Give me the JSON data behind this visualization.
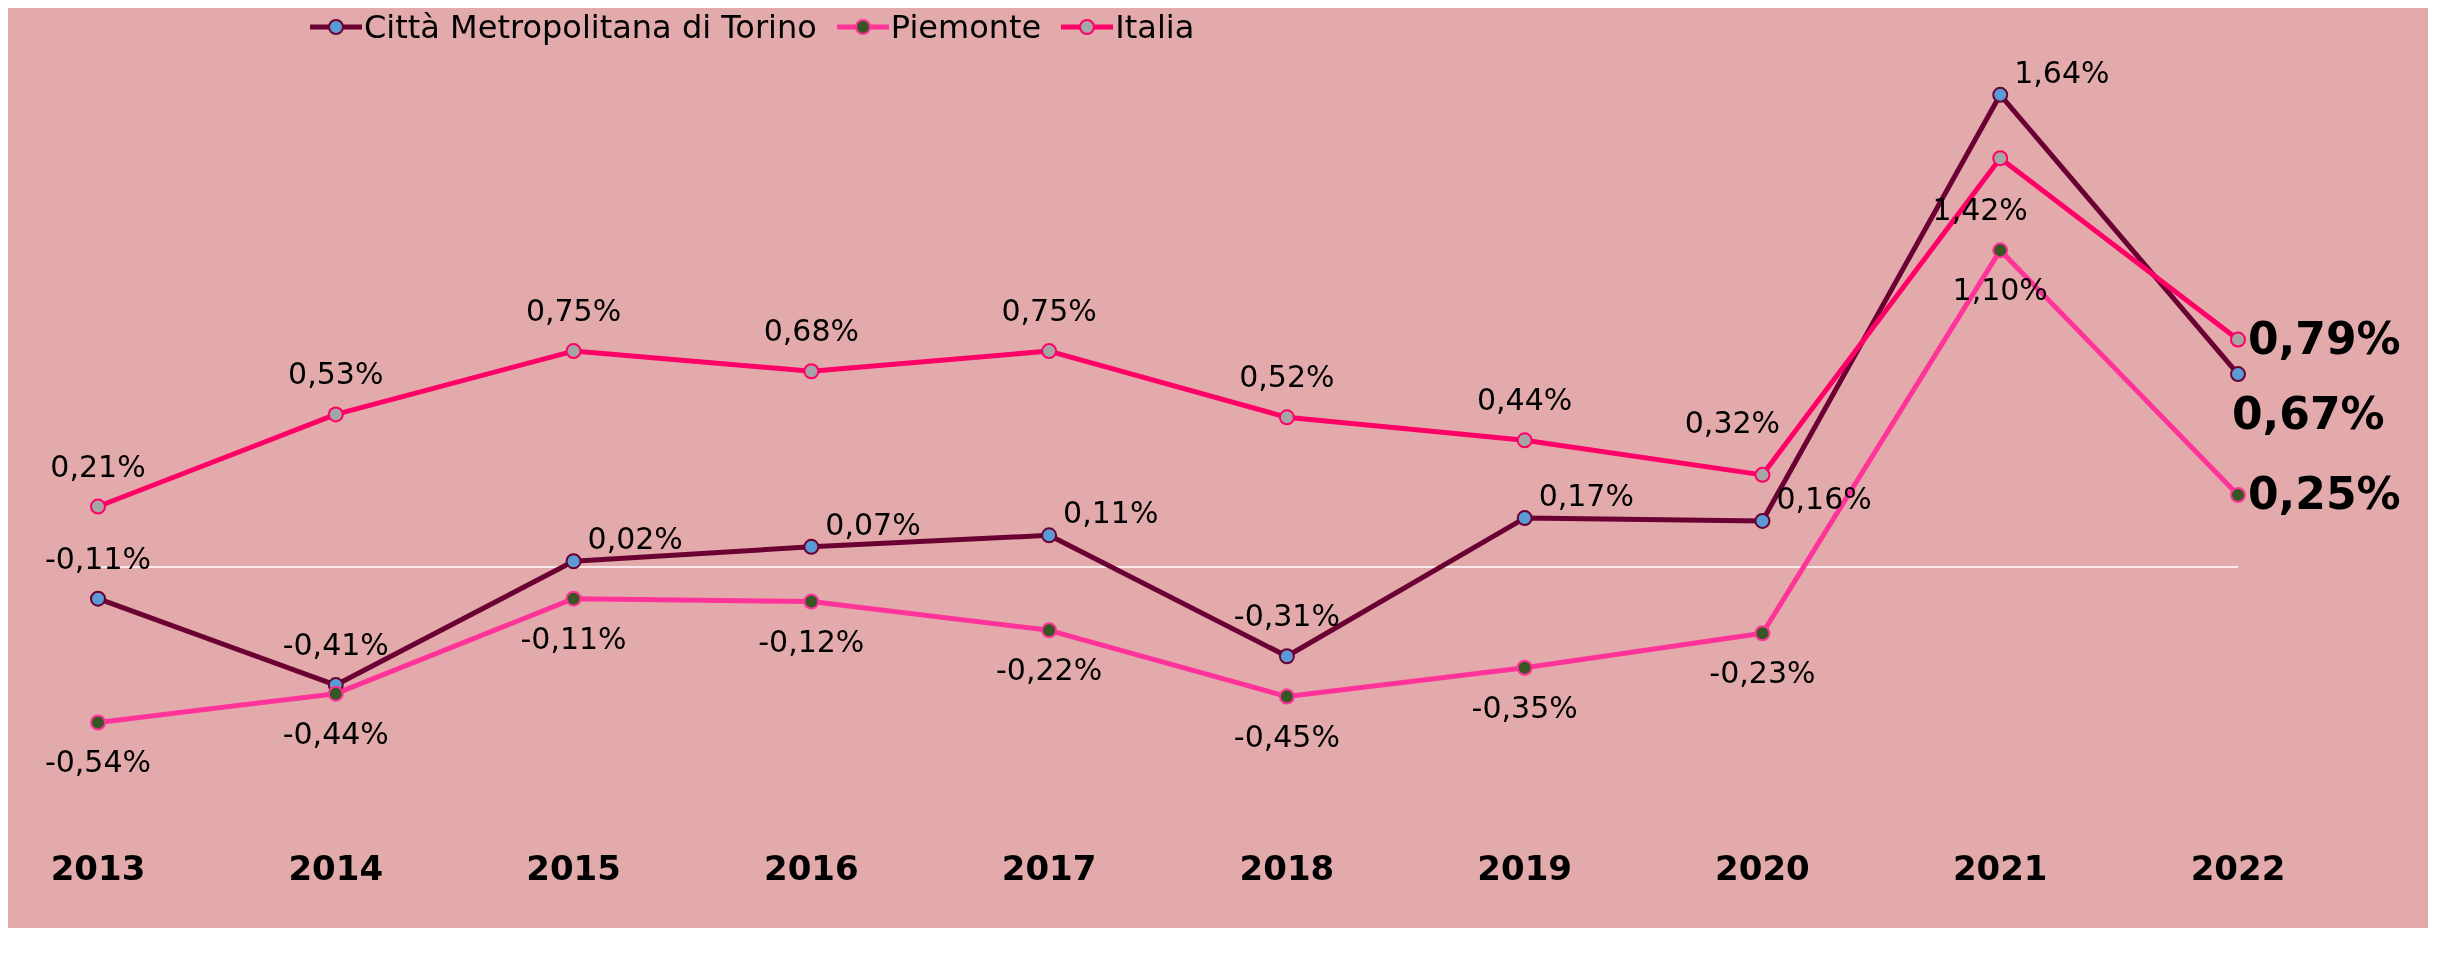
{
  "chart_data": {
    "type": "line",
    "categories": [
      "2013",
      "2014",
      "2015",
      "2016",
      "2017",
      "2018",
      "2019",
      "2020",
      "2021",
      "2022"
    ],
    "series": [
      {
        "name": "Città Metropolitana di Torino",
        "color": "#6b0033",
        "values": [
          -0.11,
          -0.41,
          0.02,
          0.07,
          0.11,
          -0.31,
          0.17,
          0.16,
          1.64,
          0.67
        ],
        "value_labels": [
          "-0,11%",
          "-0,41%",
          "0,02%",
          "0,07%",
          "0,11%",
          "-0,31%",
          "0,17%",
          "0,16%",
          "1,64%",
          "0,67%"
        ]
      },
      {
        "name": "Piemonte",
        "color": "#ff3399",
        "values": [
          -0.54,
          -0.44,
          -0.11,
          -0.12,
          -0.22,
          -0.45,
          -0.35,
          -0.23,
          1.1,
          0.25
        ],
        "value_labels": [
          "-0,54%",
          "-0,44%",
          "-0,11%",
          "-0,12%",
          "-0,22%",
          "-0,45%",
          "-0,35%",
          "-0,23%",
          "1,10%",
          "0,25%"
        ]
      },
      {
        "name": "Italia",
        "color": "#ff0066",
        "values": [
          0.21,
          0.53,
          0.75,
          0.68,
          0.75,
          0.52,
          0.44,
          0.32,
          1.42,
          0.79
        ],
        "value_labels": [
          "0,21%",
          "0,53%",
          "0,75%",
          "0,68%",
          "0,75%",
          "0,52%",
          "0,44%",
          "0,32%",
          "1,42%",
          "0,79%"
        ]
      }
    ],
    "ref_lines": [
      {
        "axis": "y",
        "value": 0,
        "color": "#ffffff"
      }
    ],
    "legend": "top left",
    "marker": "circle",
    "line_style": "solid"
  }
}
